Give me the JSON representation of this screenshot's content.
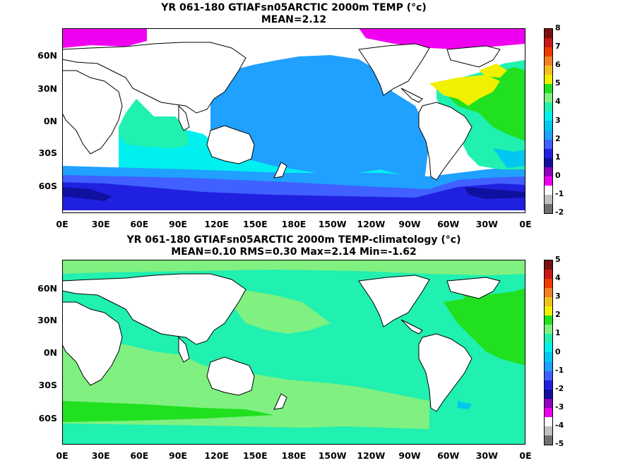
{
  "panel1": {
    "title_line1": "YR 061-180 GTIAFsn05ARCTIC 2000m TEMP (°c)",
    "title_line2": "MEAN=2.12",
    "colorbar": {
      "ticks": [
        "8",
        "7",
        "6",
        "5",
        "4",
        "3",
        "2",
        "1",
        "0",
        "-1",
        "-2"
      ],
      "colors": [
        "#7a1010",
        "#c81818",
        "#ef3a00",
        "#f08020",
        "#f0c020",
        "#f0f000",
        "#20e020",
        "#80f080",
        "#20f0b0",
        "#00f0f0",
        "#00c8f0",
        "#20a0ff",
        "#4060ff",
        "#2020e0",
        "#1010a0",
        "#9000c0",
        "#f000f0",
        "#ffffff",
        "#c0c0c0",
        "#707070"
      ]
    }
  },
  "panel2": {
    "title_line1": "YR 061-180 GTIAFsn05ARCTIC 2000m TEMP-climatology (°c)",
    "title_line2": "MEAN=0.10   RMS=0.30   Max=2.14   Min=-1.62",
    "colorbar": {
      "ticks": [
        "5",
        "4",
        "3",
        "2",
        "1",
        "0",
        "-1",
        "-2",
        "-3",
        "-4",
        "-5"
      ],
      "colors": [
        "#7a1010",
        "#c81818",
        "#ef3a00",
        "#f08020",
        "#f0c020",
        "#f0f000",
        "#20e020",
        "#80f080",
        "#20f0b0",
        "#00f0f0",
        "#00c8f0",
        "#20a0ff",
        "#4060ff",
        "#2020e0",
        "#1010a0",
        "#9000c0",
        "#f000f0",
        "#ffffff",
        "#c0c0c0",
        "#707070"
      ]
    }
  },
  "axes": {
    "lat_labels": [
      "60N",
      "30N",
      "0N",
      "30S",
      "60S"
    ],
    "lon_labels": [
      "0E",
      "30E",
      "60E",
      "90E",
      "120E",
      "150E",
      "180E",
      "150W",
      "120W",
      "90W",
      "60W",
      "30W",
      "0E"
    ]
  }
}
